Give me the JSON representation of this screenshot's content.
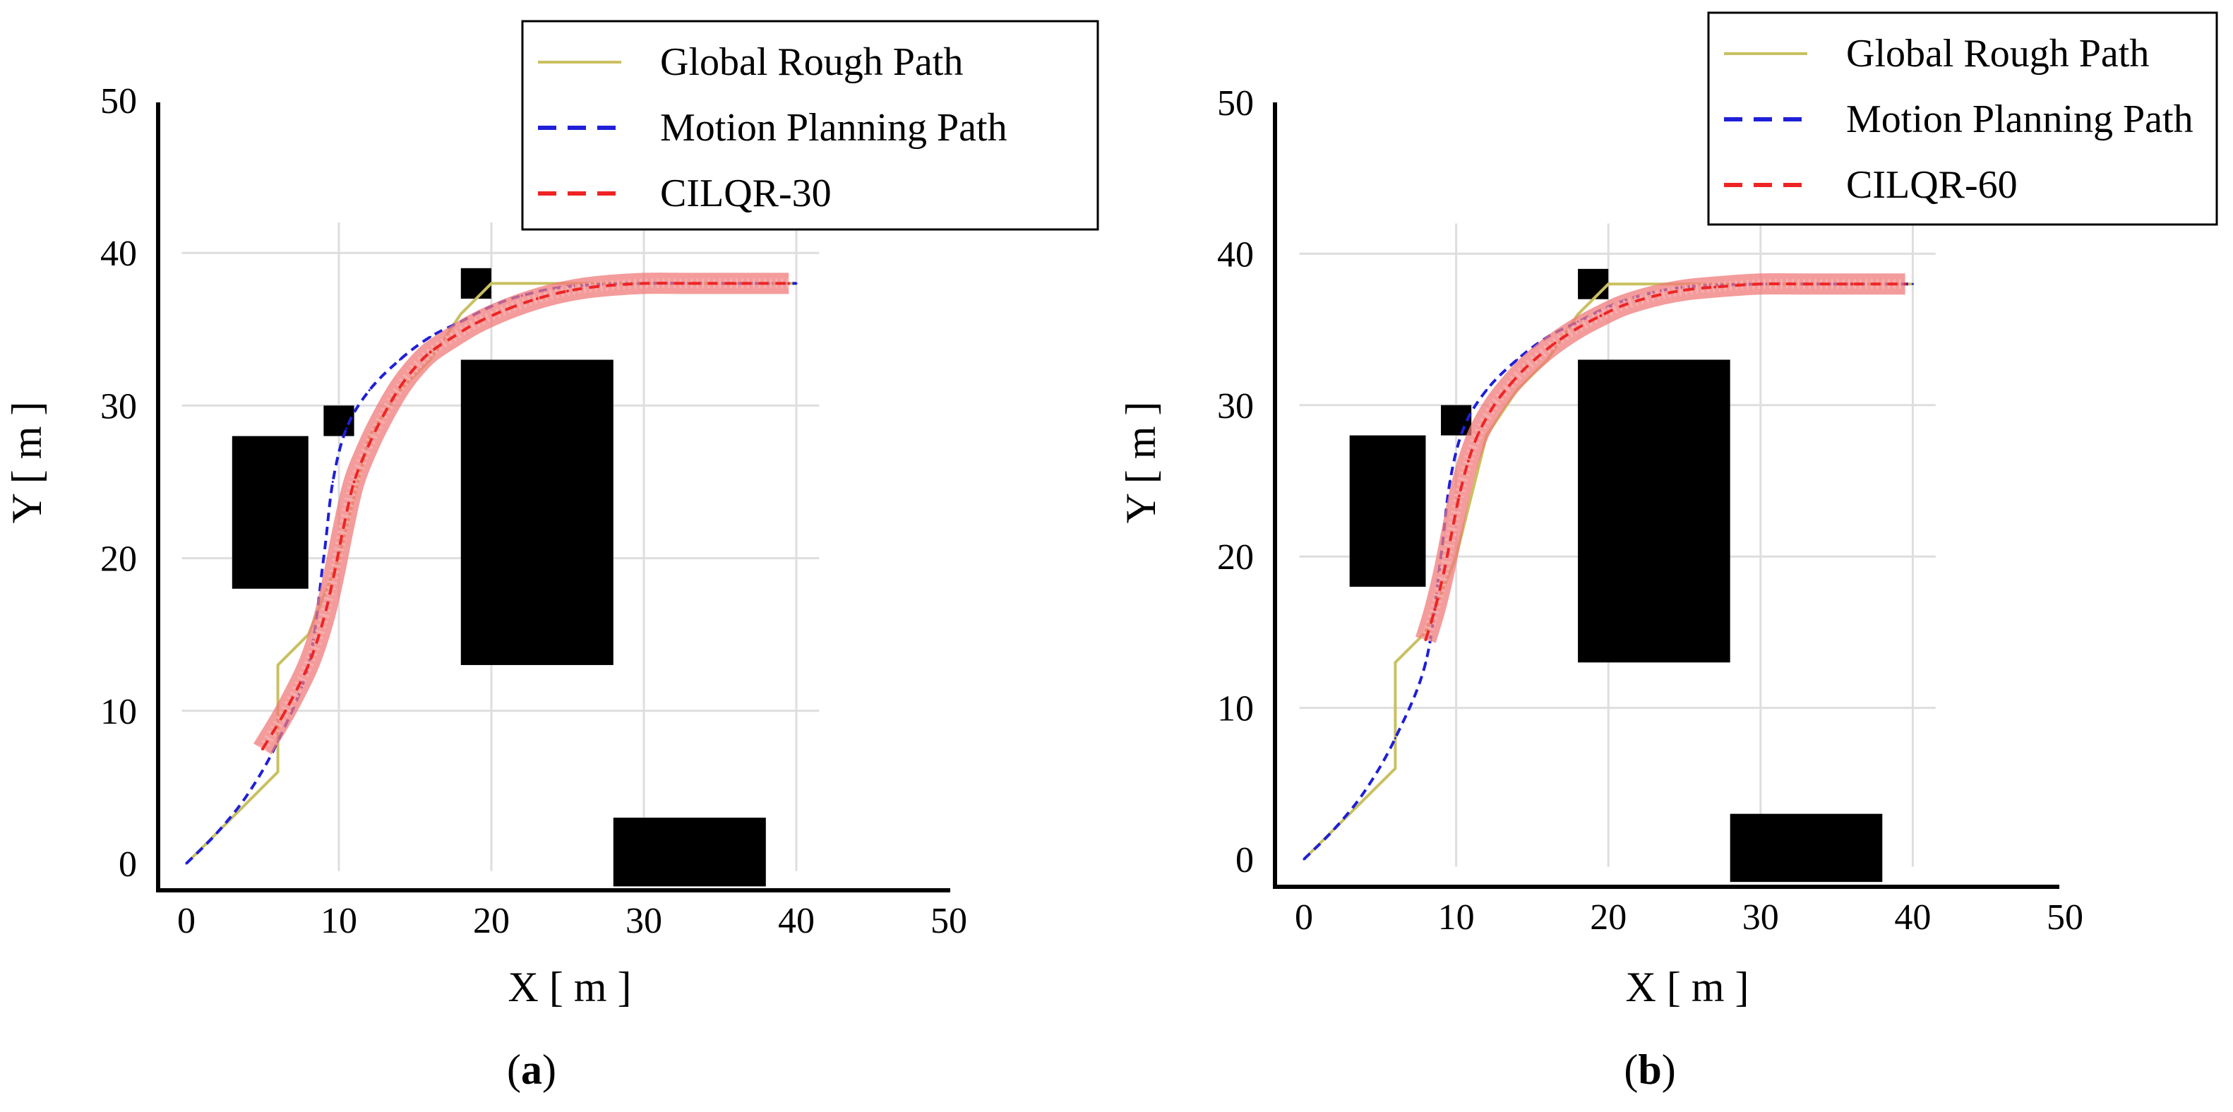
{
  "colors": {
    "rough": "#c9c060",
    "motion": "#1f1fd8",
    "cilqr": "#ee2424",
    "cilqr_band": "#f07a7a",
    "grid": "#dedede",
    "obstacle": "#000000"
  },
  "chart_data": [
    {
      "type": "line",
      "panel_label": "(a)",
      "xlabel": "X [ m ]",
      "ylabel": "Y [ m ]",
      "xlim": [
        -2,
        50
      ],
      "ylim": [
        -2,
        50
      ],
      "xticks": [
        0,
        10,
        20,
        30,
        40,
        50
      ],
      "yticks": [
        0,
        10,
        20,
        30,
        40,
        50
      ],
      "grid": true,
      "legend_position": "top-right",
      "obstacles": [
        {
          "x0": 3,
          "x1": 8,
          "y0": 18,
          "y1": 28
        },
        {
          "x0": 9,
          "x1": 11,
          "y0": 28,
          "y1": 30
        },
        {
          "x0": 18,
          "x1": 20,
          "y0": 37,
          "y1": 39
        },
        {
          "x0": 18,
          "x1": 28,
          "y0": 13,
          "y1": 33
        },
        {
          "x0": 28,
          "x1": 38,
          "y0": -1.5,
          "y1": 3
        }
      ],
      "series": [
        {
          "name": "Global Rough Path",
          "style": "solid",
          "color_key": "rough",
          "x": [
            0,
            6,
            6,
            8,
            10,
            12,
            14,
            16,
            18,
            20,
            30,
            40
          ],
          "y": [
            0,
            6,
            13,
            15,
            20,
            28,
            31,
            33,
            36,
            38,
            38,
            38
          ]
        },
        {
          "name": "Motion Planning Path",
          "style": "dashed",
          "color_key": "motion",
          "x": [
            0,
            2,
            4,
            6,
            8,
            9,
            9.6,
            10.5,
            12,
            14,
            16,
            18,
            20,
            22,
            25,
            30,
            35,
            40
          ],
          "y": [
            0,
            2,
            4.5,
            8,
            13,
            20,
            25,
            28.5,
            31,
            33,
            34.5,
            35.5,
            36.5,
            37.2,
            37.8,
            38,
            38,
            38
          ]
        },
        {
          "name": "CILQR-30",
          "style": "dashed",
          "color_key": "cilqr",
          "band": true,
          "x": [
            5,
            6.5,
            8,
            9,
            9.7,
            10.3,
            11,
            12,
            13,
            14,
            15,
            16,
            17.5,
            19,
            21,
            23,
            25,
            27,
            30,
            33,
            36,
            39.5
          ],
          "y": [
            7.5,
            10,
            13,
            16,
            19,
            22,
            25,
            27.5,
            29.5,
            31.2,
            32.5,
            33.5,
            34.5,
            35.4,
            36.3,
            37,
            37.5,
            37.8,
            38,
            38,
            38,
            38
          ]
        }
      ]
    },
    {
      "type": "line",
      "panel_label": "(b)",
      "xlabel": "X [ m ]",
      "ylabel": "Y [ m ]",
      "xlim": [
        -2,
        50
      ],
      "ylim": [
        -2,
        50
      ],
      "xticks": [
        0,
        10,
        20,
        30,
        40,
        50
      ],
      "yticks": [
        0,
        10,
        20,
        30,
        40,
        50
      ],
      "grid": true,
      "legend_position": "top-right",
      "obstacles": [
        {
          "x0": 3,
          "x1": 8,
          "y0": 18,
          "y1": 28
        },
        {
          "x0": 9,
          "x1": 11,
          "y0": 28,
          "y1": 30
        },
        {
          "x0": 18,
          "x1": 20,
          "y0": 37,
          "y1": 39
        },
        {
          "x0": 18,
          "x1": 28,
          "y0": 13,
          "y1": 33
        },
        {
          "x0": 28,
          "x1": 38,
          "y0": -1.5,
          "y1": 3
        }
      ],
      "series": [
        {
          "name": "Global Rough Path",
          "style": "solid",
          "color_key": "rough",
          "x": [
            0,
            6,
            6,
            8,
            10,
            12,
            14,
            16,
            18,
            20,
            30,
            40
          ],
          "y": [
            0,
            6,
            13,
            15,
            20,
            28,
            31,
            33,
            36,
            38,
            38,
            38
          ]
        },
        {
          "name": "Motion Planning Path",
          "style": "dashed",
          "color_key": "motion",
          "x": [
            0,
            2,
            4,
            6,
            8,
            9,
            9.6,
            10.5,
            12,
            14,
            16,
            18,
            20,
            22,
            25,
            30,
            35,
            40
          ],
          "y": [
            0,
            2,
            4.5,
            8,
            13,
            20,
            25,
            28.5,
            31,
            33,
            34.5,
            35.5,
            36.5,
            37.2,
            37.8,
            38,
            38,
            38
          ]
        },
        {
          "name": "CILQR-60",
          "style": "dashed",
          "color_key": "cilqr",
          "band": true,
          "x": [
            8,
            8.6,
            9.2,
            9.7,
            10.2,
            10.8,
            11.5,
            12.5,
            13.5,
            14.5,
            15.5,
            16.5,
            18,
            19.5,
            21,
            23,
            25,
            27,
            30,
            33,
            36,
            39.5
          ],
          "y": [
            14.5,
            16.5,
            19,
            21.5,
            24,
            26.3,
            28.2,
            30,
            31.3,
            32.4,
            33.3,
            34.1,
            35.1,
            35.9,
            36.6,
            37.2,
            37.6,
            37.8,
            38,
            38,
            38,
            38
          ]
        }
      ]
    }
  ]
}
